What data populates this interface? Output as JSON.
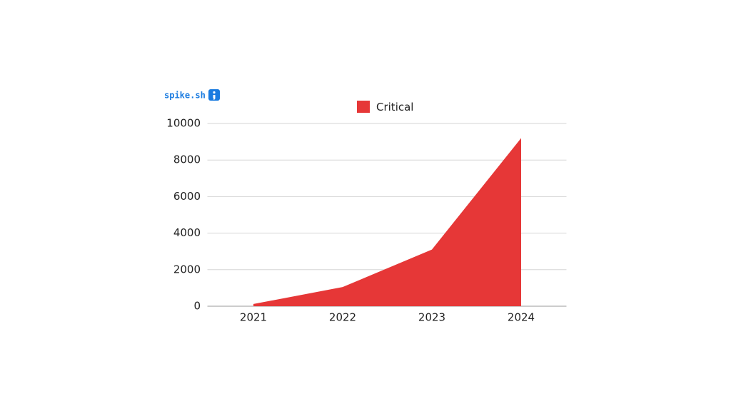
{
  "logo": "spike.sh",
  "chart_data": {
    "type": "area",
    "categories": [
      "2021",
      "2022",
      "2023",
      "2024"
    ],
    "series": [
      {
        "name": "Critical",
        "color": "#e63737",
        "values": [
          120,
          1050,
          3100,
          9200
        ]
      }
    ],
    "ylim": [
      0,
      10000
    ],
    "yticks": [
      0,
      2000,
      4000,
      6000,
      8000,
      10000
    ],
    "grid": true,
    "legend": "top"
  }
}
